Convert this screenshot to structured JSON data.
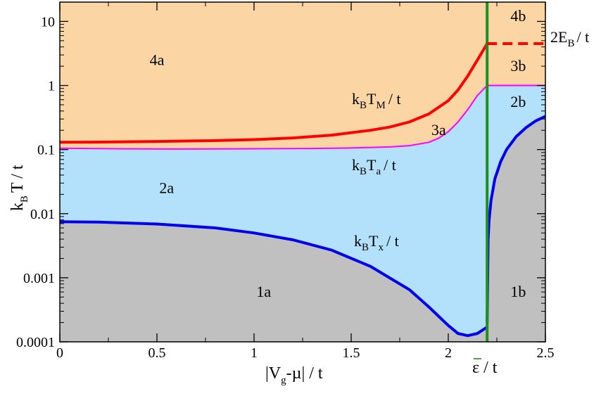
{
  "chart_data": {
    "type": "area",
    "x_axis": {
      "ticks": [
        0,
        0.5,
        1,
        1.5,
        2,
        2.5
      ],
      "tick_labels": [
        "0",
        "0.5",
        "1",
        "1.5",
        "2",
        "2.5"
      ],
      "range": [
        0,
        2.5
      ],
      "label_main": "|V",
      "label_sub": "g",
      "label_rest": "-µ| / t"
    },
    "y_axis": {
      "scale": "log",
      "range": [
        0.0001,
        20
      ],
      "ticks": [
        0.0001,
        0.001,
        0.01,
        0.1,
        1,
        10
      ],
      "tick_labels": [
        "0.0001",
        "0.001",
        "0.01",
        "0.1",
        "1",
        "10"
      ],
      "label_main": "k",
      "label_sub": "B",
      "label_rest": "T / t"
    },
    "epsilon_line": {
      "x": 2.2,
      "label_symbol": "ε",
      "label_rest": " / t",
      "color": "#1f8f1f"
    },
    "series": [
      {
        "name": "k_B T_M / t",
        "label_main": "k",
        "label_sub1": "B",
        "label_mid": "T",
        "label_sub2": "M",
        "label_rest": "/ t",
        "color": "#ff0000",
        "x": [
          0,
          0.2,
          0.5,
          0.8,
          1.0,
          1.2,
          1.4,
          1.6,
          1.7,
          1.8,
          1.9,
          2.0,
          2.05,
          2.1,
          2.15,
          2.2
        ],
        "y": [
          0.13,
          0.131,
          0.134,
          0.138,
          0.143,
          0.152,
          0.168,
          0.2,
          0.225,
          0.27,
          0.36,
          0.58,
          0.85,
          1.4,
          2.5,
          4.5
        ]
      },
      {
        "name": "k_B T_a / t",
        "label_main": "k",
        "label_sub1": "B",
        "label_mid": "T",
        "label_sub2": "a",
        "label_rest": "/ t",
        "color": "#ff00ff",
        "x": [
          0,
          0.3,
          0.6,
          1.0,
          1.3,
          1.5,
          1.7,
          1.8,
          1.9,
          1.95,
          2.0,
          2.05,
          2.1,
          2.15,
          2.2,
          2.5
        ],
        "y": [
          0.105,
          0.103,
          0.102,
          0.103,
          0.104,
          0.106,
          0.11,
          0.115,
          0.13,
          0.15,
          0.19,
          0.27,
          0.42,
          0.7,
          1.0,
          1.0
        ]
      },
      {
        "name": "k_B T_x / t",
        "label_main": "k",
        "label_sub1": "B",
        "label_mid": "T",
        "label_sub2": "x",
        "label_rest": "/ t",
        "color": "#0000ee",
        "x": [
          0,
          0.2,
          0.5,
          0.8,
          1.0,
          1.2,
          1.4,
          1.6,
          1.8,
          1.9,
          2.0,
          2.05,
          2.1,
          2.15,
          2.2
        ],
        "y": [
          0.0075,
          0.0074,
          0.0069,
          0.006,
          0.005,
          0.0039,
          0.0027,
          0.0015,
          0.00065,
          0.00035,
          0.00018,
          0.000135,
          0.000125,
          0.000135,
          0.00017
        ]
      },
      {
        "name": "k_B T_x / t (b)",
        "color": "#0000ee",
        "x": [
          2.2,
          2.205,
          2.21,
          2.22,
          2.24,
          2.27,
          2.3,
          2.35,
          2.4,
          2.45,
          2.5
        ],
        "y": [
          0.0002,
          0.004,
          0.008,
          0.016,
          0.035,
          0.065,
          0.1,
          0.16,
          0.22,
          0.28,
          0.33
        ]
      }
    ],
    "two_EB": {
      "value": 4.5,
      "label_main": "2E",
      "label_sub": "B",
      "label_rest": "/ t",
      "color": "#ff0000"
    },
    "region_colors": {
      "region4": "#fcd5a5",
      "region2": "#b3e1fb",
      "region1": "#c0c0c0"
    },
    "regions": [
      {
        "label": "4a",
        "x": 0.5,
        "y": 2.5
      },
      {
        "label": "3a",
        "x": 1.95,
        "y": 0.2
      },
      {
        "label": "2a",
        "x": 0.55,
        "y": 0.025
      },
      {
        "label": "1a",
        "x": 1.05,
        "y": 0.0006
      },
      {
        "label": "4b",
        "x": 2.36,
        "y": 12
      },
      {
        "label": "3b",
        "x": 2.36,
        "y": 2.0
      },
      {
        "label": "2b",
        "x": 2.36,
        "y": 0.55
      },
      {
        "label": "1b",
        "x": 2.36,
        "y": 0.0006
      }
    ]
  }
}
